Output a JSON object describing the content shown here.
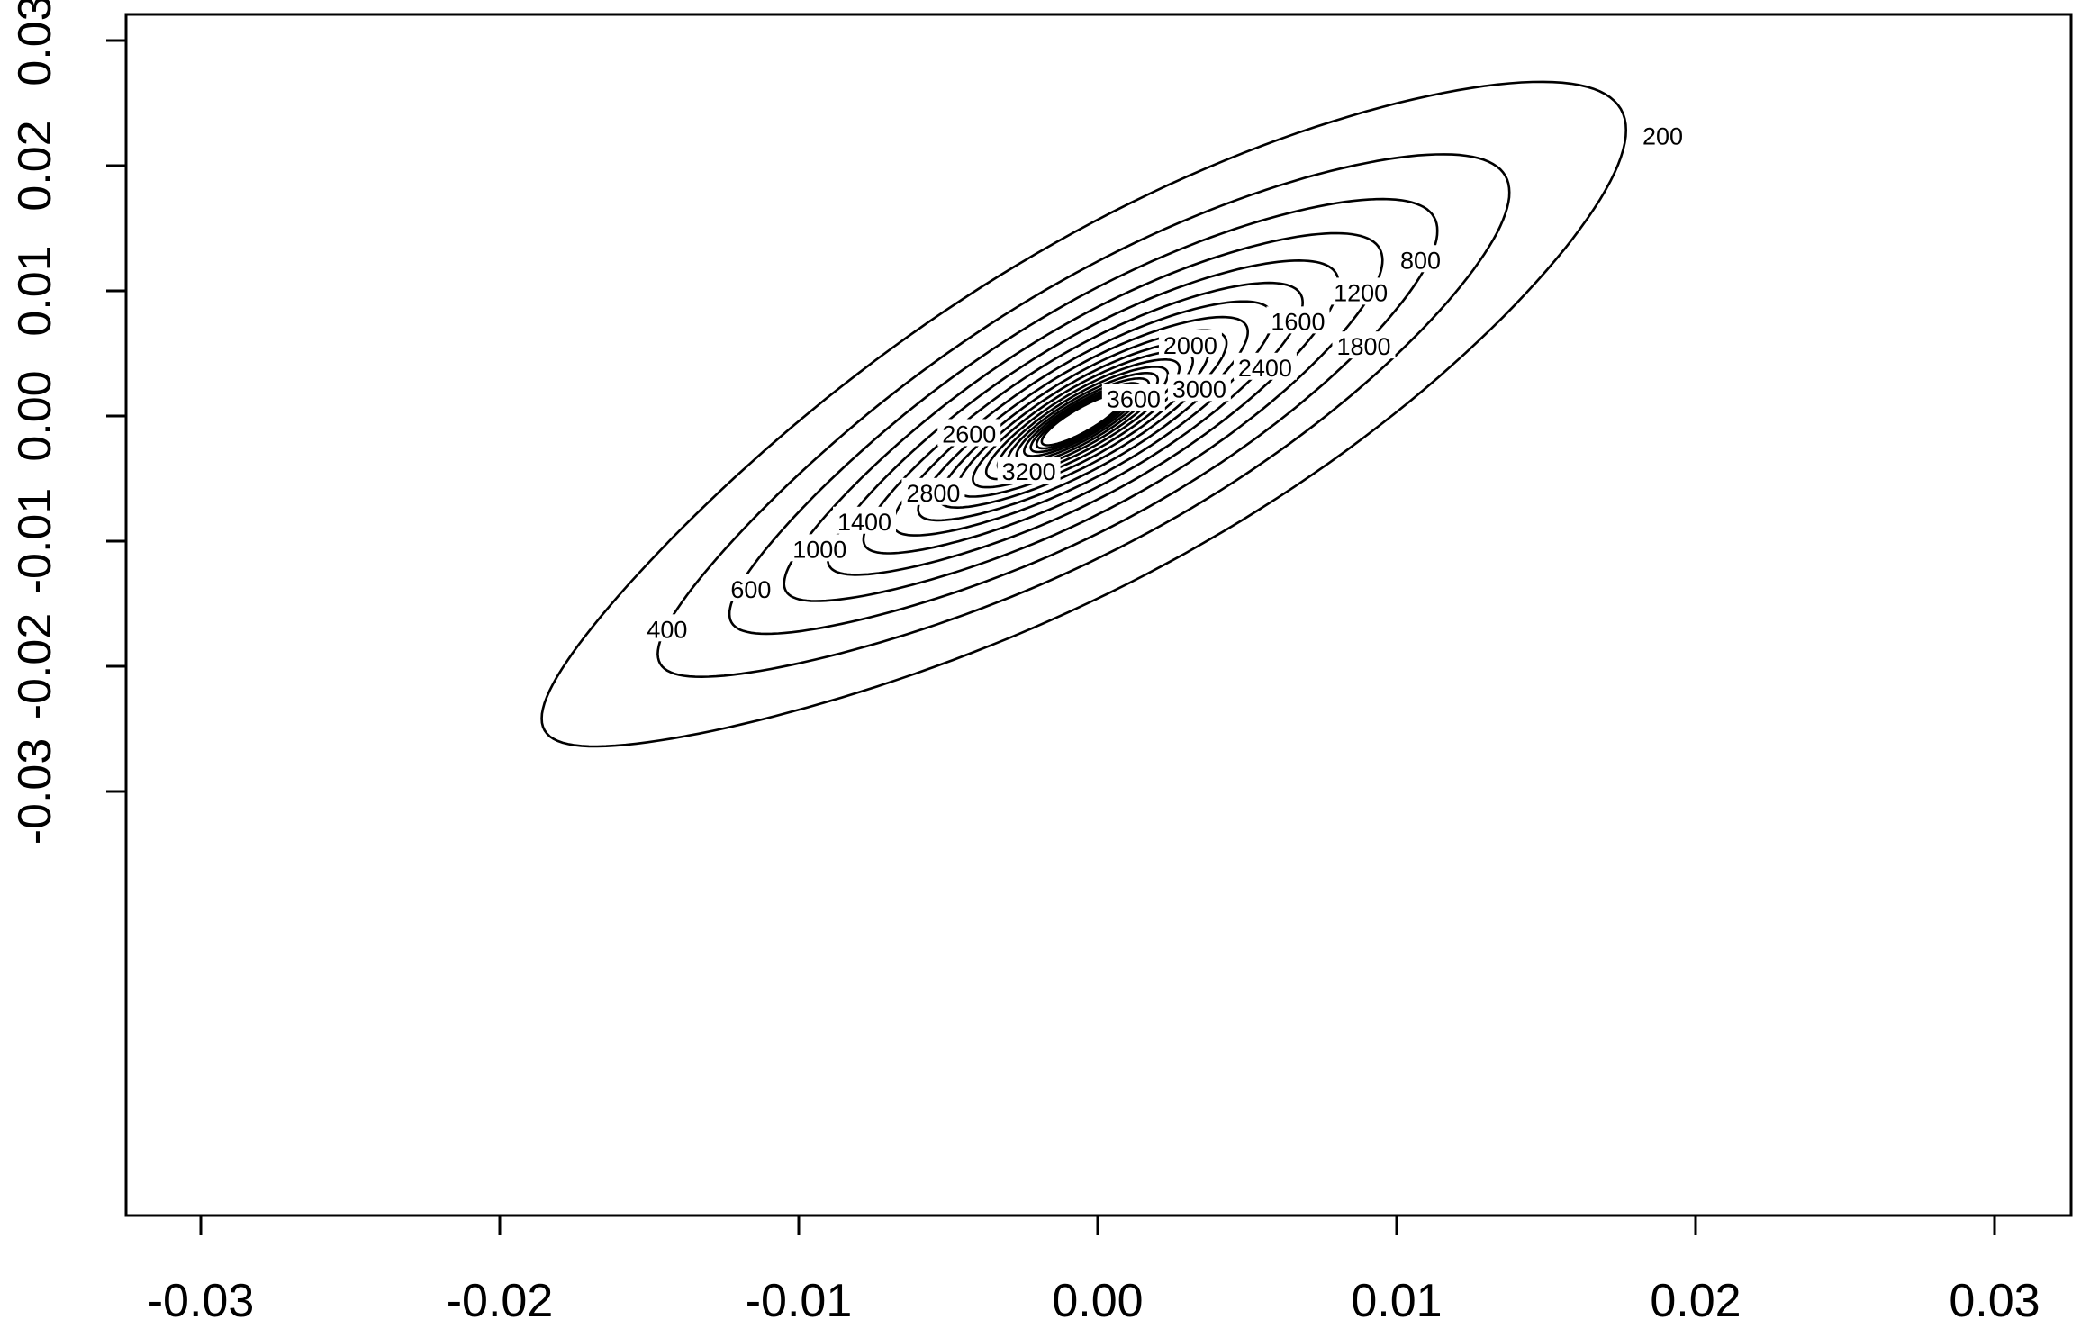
{
  "chart_data": {
    "type": "contour",
    "title": "",
    "xlabel": "",
    "ylabel": "",
    "xlim": [
      -0.0325,
      0.0325
    ],
    "ylim": [
      -0.0325,
      0.0325
    ],
    "x_ticks": [
      -0.03,
      -0.02,
      -0.01,
      0.0,
      0.01,
      0.02,
      0.03
    ],
    "y_ticks": [
      -0.03,
      -0.02,
      -0.01,
      0.0,
      0.01,
      0.02,
      0.03
    ],
    "x_tick_labels": [
      "-0.03",
      "-0.02",
      "-0.01",
      "0.00",
      "0.01",
      "0.02",
      "0.03"
    ],
    "y_tick_labels": [
      "-0.03",
      "-0.02",
      "-0.01",
      "0.00",
      "0.01",
      "0.02",
      "0.03"
    ],
    "grid": false,
    "levels": [
      200,
      400,
      600,
      800,
      1000,
      1200,
      1400,
      1600,
      1800,
      2000,
      2200,
      2400,
      2600,
      2800,
      3000,
      3200,
      3400,
      3600,
      3800
    ],
    "peak_center": [
      -0.0005,
      -0.0003
    ],
    "principal_axis_angle_deg": 30,
    "contour_labels": [
      {
        "text": "200",
        "x": 0.0189,
        "y": 0.0224
      },
      {
        "text": "400",
        "x": -0.0144,
        "y": -0.017
      },
      {
        "text": "600",
        "x": -0.0116,
        "y": -0.0138
      },
      {
        "text": "800",
        "x": 0.0108,
        "y": 0.0125
      },
      {
        "text": "1000",
        "x": -0.0093,
        "y": -0.0106
      },
      {
        "text": "1200",
        "x": 0.0088,
        "y": 0.0099
      },
      {
        "text": "1400",
        "x": -0.0078,
        "y": -0.0084
      },
      {
        "text": "1600",
        "x": 0.0067,
        "y": 0.0076
      },
      {
        "text": "1800",
        "x": 0.0089,
        "y": 0.0056
      },
      {
        "text": "2000",
        "x": 0.0031,
        "y": 0.0057
      },
      {
        "text": "2400",
        "x": 0.0056,
        "y": 0.0039
      },
      {
        "text": "2800",
        "x": -0.0055,
        "y": -0.0061
      },
      {
        "text": "2600",
        "x": -0.0043,
        "y": -0.0014
      },
      {
        "text": "3000",
        "x": 0.0034,
        "y": 0.0022
      },
      {
        "text": "3200",
        "x": -0.0023,
        "y": -0.0044
      },
      {
        "text": "3600",
        "x": 0.0012,
        "y": 0.0014
      }
    ]
  }
}
